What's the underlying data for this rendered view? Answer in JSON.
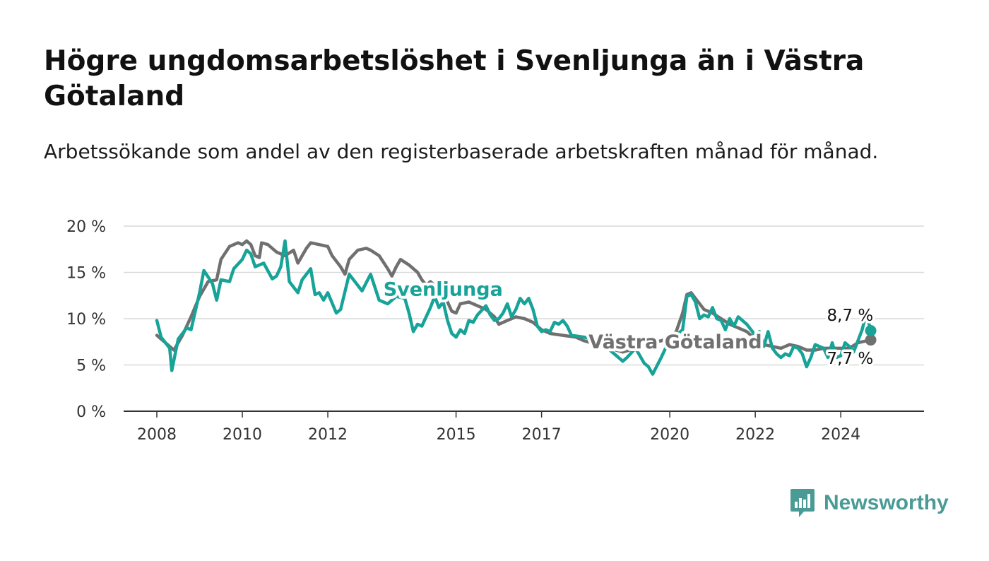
{
  "title": "Högre ungdomsarbetslöshet i Svenljunga än i Västra Götaland",
  "subtitle": "Arbetssökande som andel av den registerbaserade arbetskraften månad för månad.",
  "brand": {
    "name": "Newsworthy",
    "icon": "newsworthy-logo-icon",
    "color": "#4a9b96"
  },
  "chart_data": {
    "type": "line",
    "title": "Högre ungdomsarbetslöshet i Svenljunga än i Västra Götaland",
    "xlabel": "",
    "ylabel": "",
    "ylim": [
      0,
      20
    ],
    "xlim": [
      2008.0,
      2025.6
    ],
    "yticks": [
      0,
      5,
      10,
      15,
      20
    ],
    "ytick_labels": [
      "0 %",
      "5 %",
      "10 %",
      "15 %",
      "20 %"
    ],
    "xticks": [
      2008,
      2010,
      2012,
      2015,
      2017,
      2020,
      2022,
      2024
    ],
    "xtick_labels": [
      "2008",
      "2010",
      "2012",
      "2015",
      "2017",
      "2020",
      "2022",
      "2024"
    ],
    "grid": true,
    "legend": "none",
    "series": [
      {
        "name": "Svenljunga",
        "color": "#17a398",
        "end_label": "8,7 %",
        "points": [
          [
            2008.0,
            9.8
          ],
          [
            2008.1,
            8.0
          ],
          [
            2008.3,
            6.8
          ],
          [
            2008.35,
            4.4
          ],
          [
            2008.5,
            7.8
          ],
          [
            2008.7,
            9.0
          ],
          [
            2008.8,
            8.8
          ],
          [
            2009.0,
            12.8
          ],
          [
            2009.1,
            15.2
          ],
          [
            2009.3,
            13.8
          ],
          [
            2009.4,
            12.0
          ],
          [
            2009.5,
            14.2
          ],
          [
            2009.7,
            14.0
          ],
          [
            2009.8,
            15.4
          ],
          [
            2010.0,
            16.4
          ],
          [
            2010.1,
            17.4
          ],
          [
            2010.2,
            17.0
          ],
          [
            2010.3,
            15.6
          ],
          [
            2010.5,
            16.0
          ],
          [
            2010.7,
            14.3
          ],
          [
            2010.8,
            14.6
          ],
          [
            2010.9,
            15.6
          ],
          [
            2011.0,
            18.4
          ],
          [
            2011.1,
            14.0
          ],
          [
            2011.3,
            12.8
          ],
          [
            2011.4,
            14.2
          ],
          [
            2011.6,
            15.4
          ],
          [
            2011.7,
            12.6
          ],
          [
            2011.8,
            12.8
          ],
          [
            2011.9,
            12.0
          ],
          [
            2012.0,
            12.8
          ],
          [
            2012.2,
            10.6
          ],
          [
            2012.3,
            11.0
          ],
          [
            2012.5,
            14.8
          ],
          [
            2012.6,
            14.2
          ],
          [
            2012.8,
            13.0
          ],
          [
            2013.0,
            14.8
          ],
          [
            2013.2,
            12.0
          ],
          [
            2013.4,
            11.6
          ],
          [
            2013.6,
            12.4
          ],
          [
            2013.8,
            12.2
          ],
          [
            2013.9,
            10.6
          ],
          [
            2014.0,
            8.6
          ],
          [
            2014.1,
            9.4
          ],
          [
            2014.2,
            9.2
          ],
          [
            2014.4,
            11.2
          ],
          [
            2014.5,
            12.4
          ],
          [
            2014.6,
            11.2
          ],
          [
            2014.7,
            11.8
          ],
          [
            2014.8,
            9.8
          ],
          [
            2014.9,
            8.4
          ],
          [
            2015.0,
            8.0
          ],
          [
            2015.1,
            8.8
          ],
          [
            2015.2,
            8.4
          ],
          [
            2015.3,
            9.8
          ],
          [
            2015.4,
            9.6
          ],
          [
            2015.5,
            10.4
          ],
          [
            2015.7,
            11.4
          ],
          [
            2015.8,
            10.4
          ],
          [
            2015.9,
            9.8
          ],
          [
            2016.0,
            10.0
          ],
          [
            2016.1,
            10.6
          ],
          [
            2016.2,
            11.6
          ],
          [
            2016.3,
            10.2
          ],
          [
            2016.4,
            11.0
          ],
          [
            2016.5,
            12.2
          ],
          [
            2016.6,
            11.6
          ],
          [
            2016.7,
            12.2
          ],
          [
            2016.8,
            11.0
          ],
          [
            2016.9,
            9.2
          ],
          [
            2017.0,
            8.6
          ],
          [
            2017.1,
            8.8
          ],
          [
            2017.2,
            8.6
          ],
          [
            2017.3,
            9.6
          ],
          [
            2017.4,
            9.4
          ],
          [
            2017.5,
            9.8
          ],
          [
            2017.6,
            9.2
          ],
          [
            2017.7,
            8.2
          ],
          [
            2018.0,
            8.0
          ],
          [
            2018.3,
            7.6
          ],
          [
            2018.6,
            6.6
          ],
          [
            2018.9,
            5.4
          ],
          [
            2019.0,
            5.8
          ],
          [
            2019.2,
            6.8
          ],
          [
            2019.4,
            5.2
          ],
          [
            2019.5,
            4.8
          ],
          [
            2019.6,
            4.0
          ],
          [
            2019.8,
            5.8
          ],
          [
            2019.9,
            6.8
          ],
          [
            2020.0,
            7.4
          ],
          [
            2020.1,
            8.2
          ],
          [
            2020.2,
            8.4
          ],
          [
            2020.3,
            8.8
          ],
          [
            2020.4,
            12.4
          ],
          [
            2020.5,
            12.6
          ],
          [
            2020.6,
            11.8
          ],
          [
            2020.7,
            10.0
          ],
          [
            2020.8,
            10.4
          ],
          [
            2020.9,
            10.2
          ],
          [
            2021.0,
            11.2
          ],
          [
            2021.1,
            10.0
          ],
          [
            2021.2,
            9.8
          ],
          [
            2021.3,
            8.8
          ],
          [
            2021.4,
            10.0
          ],
          [
            2021.5,
            9.2
          ],
          [
            2021.6,
            10.2
          ],
          [
            2021.8,
            9.4
          ],
          [
            2022.0,
            8.2
          ],
          [
            2022.1,
            8.6
          ],
          [
            2022.2,
            7.0
          ],
          [
            2022.3,
            8.6
          ],
          [
            2022.4,
            6.8
          ],
          [
            2022.5,
            6.2
          ],
          [
            2022.6,
            5.8
          ],
          [
            2022.7,
            6.2
          ],
          [
            2022.8,
            6.0
          ],
          [
            2022.9,
            7.0
          ],
          [
            2023.0,
            6.8
          ],
          [
            2023.1,
            6.2
          ],
          [
            2023.2,
            4.8
          ],
          [
            2023.3,
            5.8
          ],
          [
            2023.4,
            7.2
          ],
          [
            2023.5,
            7.0
          ],
          [
            2023.6,
            6.8
          ],
          [
            2023.7,
            5.8
          ],
          [
            2023.8,
            7.4
          ],
          [
            2023.9,
            5.8
          ],
          [
            2024.0,
            6.0
          ],
          [
            2024.1,
            7.4
          ],
          [
            2024.2,
            7.0
          ],
          [
            2024.3,
            6.4
          ],
          [
            2024.4,
            7.6
          ],
          [
            2024.5,
            8.8
          ],
          [
            2024.6,
            10.6
          ],
          [
            2024.7,
            8.7
          ]
        ]
      },
      {
        "name": "Västra Götaland",
        "color": "#707070",
        "end_label": "7,7 %",
        "points": [
          [
            2008.0,
            8.2
          ],
          [
            2008.2,
            7.4
          ],
          [
            2008.4,
            6.6
          ],
          [
            2008.6,
            8.2
          ],
          [
            2008.8,
            10.2
          ],
          [
            2009.0,
            12.4
          ],
          [
            2009.2,
            14.0
          ],
          [
            2009.4,
            14.2
          ],
          [
            2009.5,
            16.4
          ],
          [
            2009.7,
            17.8
          ],
          [
            2009.9,
            18.2
          ],
          [
            2010.0,
            18.0
          ],
          [
            2010.1,
            18.4
          ],
          [
            2010.2,
            18.0
          ],
          [
            2010.3,
            16.8
          ],
          [
            2010.4,
            16.6
          ],
          [
            2010.45,
            18.2
          ],
          [
            2010.6,
            18.0
          ],
          [
            2010.8,
            17.2
          ],
          [
            2011.0,
            16.8
          ],
          [
            2011.2,
            17.4
          ],
          [
            2011.3,
            16.0
          ],
          [
            2011.5,
            17.6
          ],
          [
            2011.6,
            18.2
          ],
          [
            2011.8,
            18.0
          ],
          [
            2012.0,
            17.8
          ],
          [
            2012.1,
            16.8
          ],
          [
            2012.3,
            15.6
          ],
          [
            2012.4,
            14.8
          ],
          [
            2012.5,
            16.4
          ],
          [
            2012.7,
            17.4
          ],
          [
            2012.9,
            17.6
          ],
          [
            2013.0,
            17.4
          ],
          [
            2013.2,
            16.8
          ],
          [
            2013.4,
            15.4
          ],
          [
            2013.5,
            14.6
          ],
          [
            2013.6,
            15.6
          ],
          [
            2013.7,
            16.4
          ],
          [
            2013.9,
            15.8
          ],
          [
            2014.1,
            15.0
          ],
          [
            2014.2,
            14.2
          ],
          [
            2014.3,
            13.6
          ],
          [
            2014.4,
            14.0
          ],
          [
            2014.5,
            13.6
          ],
          [
            2014.7,
            13.0
          ],
          [
            2014.8,
            11.8
          ],
          [
            2014.9,
            10.8
          ],
          [
            2015.0,
            10.6
          ],
          [
            2015.1,
            11.6
          ],
          [
            2015.3,
            11.8
          ],
          [
            2015.5,
            11.4
          ],
          [
            2015.7,
            11.0
          ],
          [
            2015.9,
            10.2
          ],
          [
            2016.0,
            9.4
          ],
          [
            2016.2,
            9.8
          ],
          [
            2016.4,
            10.2
          ],
          [
            2016.6,
            10.0
          ],
          [
            2016.8,
            9.6
          ],
          [
            2017.0,
            8.8
          ],
          [
            2017.2,
            8.4
          ],
          [
            2017.5,
            8.2
          ],
          [
            2017.8,
            8.0
          ],
          [
            2018.0,
            7.6
          ],
          [
            2018.3,
            7.2
          ],
          [
            2018.6,
            6.8
          ],
          [
            2018.9,
            6.4
          ],
          [
            2019.2,
            6.8
          ],
          [
            2019.5,
            7.4
          ],
          [
            2019.8,
            7.6
          ],
          [
            2020.0,
            8.0
          ],
          [
            2020.15,
            8.6
          ],
          [
            2020.3,
            10.6
          ],
          [
            2020.4,
            12.6
          ],
          [
            2020.5,
            12.8
          ],
          [
            2020.6,
            12.2
          ],
          [
            2020.8,
            11.0
          ],
          [
            2021.0,
            10.6
          ],
          [
            2021.2,
            10.0
          ],
          [
            2021.4,
            9.4
          ],
          [
            2021.6,
            9.0
          ],
          [
            2021.8,
            8.6
          ],
          [
            2022.0,
            7.8
          ],
          [
            2022.2,
            7.2
          ],
          [
            2022.4,
            7.0
          ],
          [
            2022.6,
            6.8
          ],
          [
            2022.8,
            7.2
          ],
          [
            2023.0,
            7.0
          ],
          [
            2023.2,
            6.6
          ],
          [
            2023.4,
            6.6
          ],
          [
            2023.6,
            6.8
          ],
          [
            2023.8,
            6.8
          ],
          [
            2024.0,
            6.8
          ],
          [
            2024.2,
            6.8
          ],
          [
            2024.4,
            7.4
          ],
          [
            2024.6,
            7.6
          ],
          [
            2024.7,
            7.7
          ]
        ]
      }
    ],
    "annotations": [
      {
        "text": "Svenljunga",
        "series": 0,
        "x": 2013.3,
        "y": 12.5
      },
      {
        "text": "Västra Götaland",
        "series": 1,
        "x": 2018.1,
        "y": 6.8
      }
    ]
  }
}
